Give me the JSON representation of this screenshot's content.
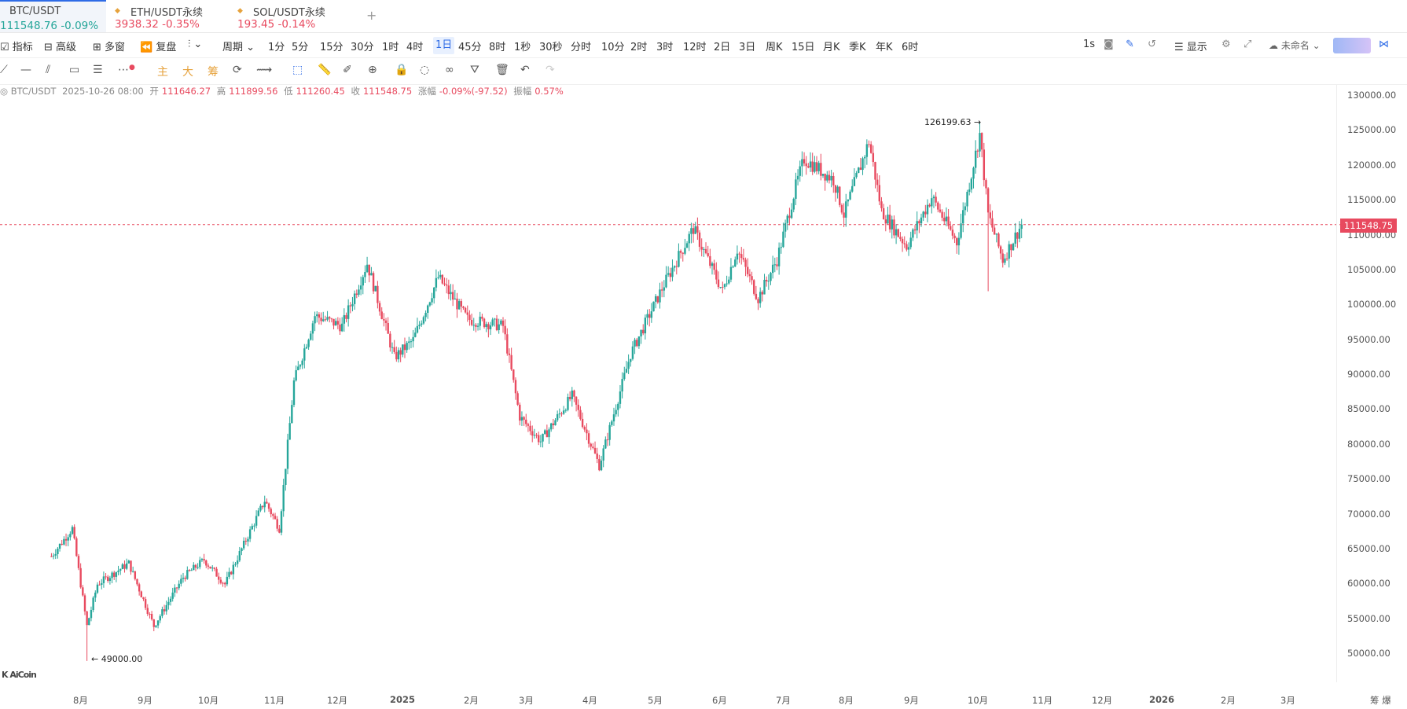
{
  "tabs": [
    {
      "title": "BTC/USDT",
      "price": "111548.76",
      "change": "-0.09%",
      "price_trend": "up",
      "change_trend": "up",
      "active": true
    },
    {
      "title": "ETH/USDT永续",
      "price": "3938.32",
      "change": "-0.35%",
      "price_trend": "down",
      "change_trend": "down",
      "active": false
    },
    {
      "title": "SOL/USDT永续",
      "price": "193.45",
      "change": "-0.14%",
      "price_trend": "down",
      "change_trend": "down",
      "active": false
    }
  ],
  "tab_add": "+",
  "toolbar": {
    "indicators": "指标",
    "advanced": "高级",
    "multi_window": "多窗",
    "replay": "复盘",
    "period": "周期",
    "intervals": [
      "1分",
      "5分",
      "15分",
      "30分",
      "1时",
      "4时",
      "1日",
      "45分",
      "8时",
      "1秒",
      "30秒",
      "分时",
      "10分",
      "2时",
      "3时",
      "12时",
      "2日",
      "3日",
      "周K",
      "15日",
      "月K",
      "季K",
      "年K",
      "6时"
    ],
    "selected_interval": "1日",
    "right_interval": "1s",
    "display": "显示",
    "layout_name": "未命名"
  },
  "drawing_tools": {
    "main": "主",
    "big": "大",
    "chips": "筹"
  },
  "legend": {
    "symbol": "BTC/USDT",
    "date": "2025-10-26 08:00",
    "open_label": "开",
    "open": "111646.27",
    "high_label": "高",
    "high": "111899.56",
    "low_label": "低",
    "low": "111260.45",
    "close_label": "收",
    "close": "111548.75",
    "change_label": "涨幅",
    "change": "-0.09%(-97.52)",
    "amp_label": "振幅",
    "amp": "0.57%"
  },
  "yaxis": [
    "130000.00",
    "125000.00",
    "120000.00",
    "115000.00",
    "110000.00",
    "105000.00",
    "100000.00",
    "95000.00",
    "90000.00",
    "85000.00",
    "80000.00",
    "75000.00",
    "70000.00",
    "65000.00",
    "60000.00",
    "55000.00",
    "50000.00"
  ],
  "xaxis": [
    "8月",
    "9月",
    "10月",
    "11月",
    "12月",
    "2025",
    "2月",
    "3月",
    "4月",
    "5月",
    "6月",
    "7月",
    "8月",
    "9月",
    "10月",
    "11月",
    "12月",
    "2026",
    "2月",
    "3月"
  ],
  "xaxis_right": "筹 爆",
  "current_price": "111548.75",
  "annotations": {
    "high": "126199.63",
    "low": "49000.00"
  },
  "colors": {
    "up": "#26a69a",
    "down": "#e84a5f",
    "accent": "#2e6be6"
  },
  "chart_data": {
    "type": "candlestick",
    "title": "BTC/USDT",
    "interval": "1日",
    "ylim": [
      48000,
      132000
    ],
    "last_close": 111548.75,
    "max_high": 126199.63,
    "min_low": 49000.0,
    "anchors": [
      [
        "2024-07-19",
        64000
      ],
      [
        "2024-07-29",
        68000
      ],
      [
        "2024-08-05",
        54000
      ],
      [
        "2024-08-10",
        60000
      ],
      [
        "2024-08-25",
        63000
      ],
      [
        "2024-09-06",
        54000
      ],
      [
        "2024-09-20",
        61000
      ],
      [
        "2024-09-30",
        63500
      ],
      [
        "2024-10-10",
        60000
      ],
      [
        "2024-10-29",
        72000
      ],
      [
        "2024-11-05",
        68000
      ],
      [
        "2024-11-12",
        89000
      ],
      [
        "2024-11-22",
        98500
      ],
      [
        "2024-12-05",
        97000
      ],
      [
        "2024-12-17",
        106000
      ],
      [
        "2024-12-30",
        92500
      ],
      [
        "2025-01-08",
        95000
      ],
      [
        "2025-01-20",
        104000
      ],
      [
        "2025-02-03",
        98000
      ],
      [
        "2025-02-20",
        97000
      ],
      [
        "2025-02-28",
        84000
      ],
      [
        "2025-03-10",
        80500
      ],
      [
        "2025-03-25",
        87000
      ],
      [
        "2025-04-07",
        77000
      ],
      [
        "2025-04-22",
        93000
      ],
      [
        "2025-05-08",
        103000
      ],
      [
        "2025-05-22",
        111000
      ],
      [
        "2025-06-05",
        102000
      ],
      [
        "2025-06-12",
        108000
      ],
      [
        "2025-06-22",
        101000
      ],
      [
        "2025-07-01",
        106500
      ],
      [
        "2025-07-10",
        117000
      ],
      [
        "2025-07-14",
        121000
      ],
      [
        "2025-07-28",
        118000
      ],
      [
        "2025-08-02",
        113000
      ],
      [
        "2025-08-14",
        123500
      ],
      [
        "2025-08-20",
        113500
      ],
      [
        "2025-09-01",
        108500
      ],
      [
        "2025-09-13",
        115500
      ],
      [
        "2025-09-25",
        109000
      ],
      [
        "2025-10-06",
        124500
      ],
      [
        "2025-10-10",
        113000
      ],
      [
        "2025-10-17",
        106500
      ],
      [
        "2025-10-26",
        111548.75
      ]
    ]
  }
}
